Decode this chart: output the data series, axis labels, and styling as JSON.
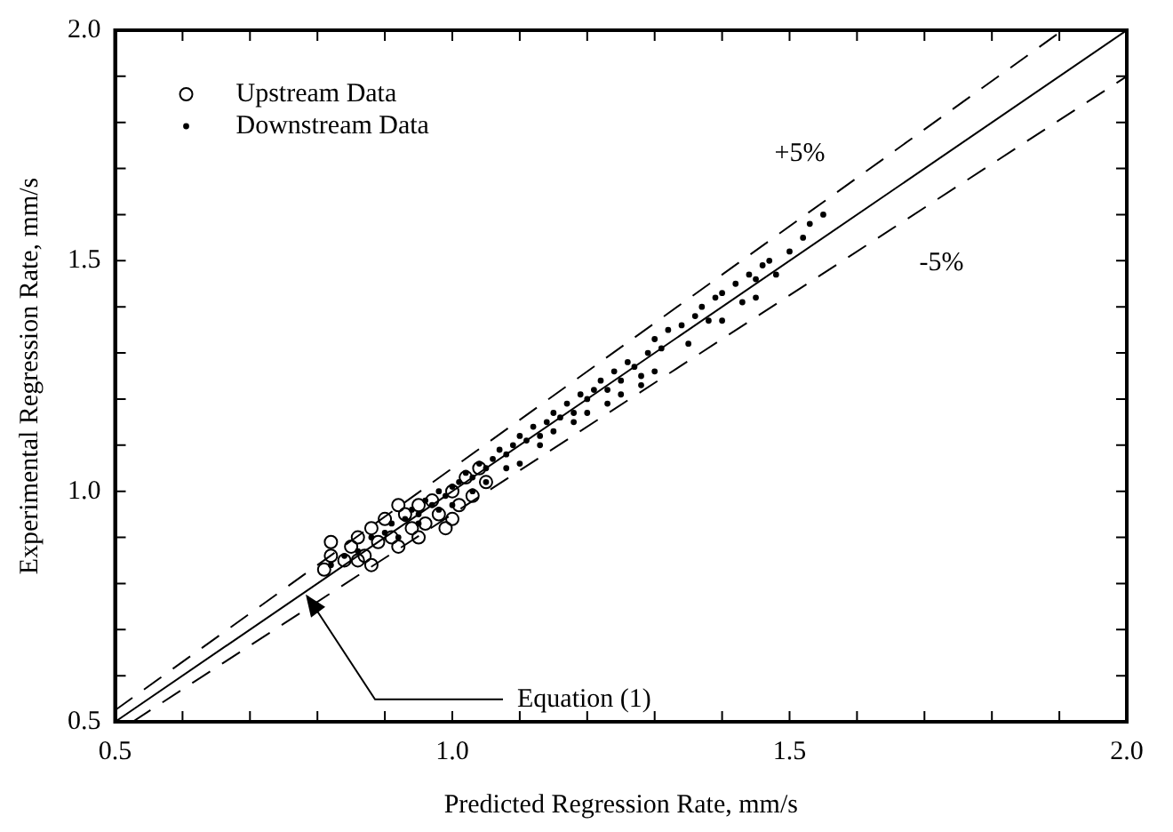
{
  "chart_data": {
    "type": "scatter",
    "xlabel": "Predicted Regression Rate, mm/s",
    "ylabel": "Experimental Regression Rate, mm/s",
    "xlim": [
      0.5,
      2.0
    ],
    "ylim": [
      0.5,
      2.0
    ],
    "xticks": [
      {
        "value": 0.5,
        "label": "0.5"
      },
      {
        "value": 0.6,
        "label": null
      },
      {
        "value": 0.7,
        "label": null
      },
      {
        "value": 0.8,
        "label": null
      },
      {
        "value": 0.9,
        "label": null
      },
      {
        "value": 1.0,
        "label": "1.0"
      },
      {
        "value": 1.1,
        "label": null
      },
      {
        "value": 1.2,
        "label": null
      },
      {
        "value": 1.3,
        "label": null
      },
      {
        "value": 1.4,
        "label": null
      },
      {
        "value": 1.5,
        "label": "1.5"
      },
      {
        "value": 1.6,
        "label": null
      },
      {
        "value": 1.7,
        "label": null
      },
      {
        "value": 1.8,
        "label": null
      },
      {
        "value": 1.9,
        "label": null
      },
      {
        "value": 2.0,
        "label": "2.0"
      }
    ],
    "yticks": [
      {
        "value": 0.5,
        "label": "0.5"
      },
      {
        "value": 0.6,
        "label": null
      },
      {
        "value": 0.7,
        "label": null
      },
      {
        "value": 0.8,
        "label": null
      },
      {
        "value": 0.9,
        "label": null
      },
      {
        "value": 1.0,
        "label": "1.0"
      },
      {
        "value": 1.1,
        "label": null
      },
      {
        "value": 1.2,
        "label": null
      },
      {
        "value": 1.3,
        "label": null
      },
      {
        "value": 1.4,
        "label": null
      },
      {
        "value": 1.5,
        "label": "1.5"
      },
      {
        "value": 1.6,
        "label": null
      },
      {
        "value": 1.7,
        "label": null
      },
      {
        "value": 1.8,
        "label": null
      },
      {
        "value": 1.9,
        "label": null
      },
      {
        "value": 2.0,
        "label": "2.0"
      }
    ],
    "grid": false,
    "legend": "top left",
    "series": [
      {
        "name": "Upstream Data",
        "marker": "circle",
        "color": "#000000",
        "x": [
          0.81,
          0.82,
          0.82,
          0.84,
          0.85,
          0.86,
          0.87,
          0.88,
          0.89,
          0.9,
          0.91,
          0.92,
          0.93,
          0.94,
          0.95,
          0.96,
          0.97,
          0.98,
          0.99,
          1.0,
          1.01,
          1.02,
          1.03,
          1.04,
          0.88,
          0.92,
          0.95,
          1.0,
          1.05,
          0.86
        ],
        "values": [
          0.83,
          0.86,
          0.89,
          0.85,
          0.88,
          0.9,
          0.86,
          0.92,
          0.89,
          0.94,
          0.9,
          0.88,
          0.95,
          0.92,
          0.97,
          0.93,
          0.98,
          0.95,
          0.92,
          1.0,
          0.97,
          1.03,
          0.99,
          1.05,
          0.84,
          0.97,
          0.9,
          0.94,
          1.02,
          0.85
        ]
      },
      {
        "name": "Downstream Data",
        "marker": "dot",
        "color": "#000000",
        "x": [
          0.82,
          0.84,
          0.86,
          0.88,
          0.9,
          0.91,
          0.93,
          0.94,
          0.95,
          0.96,
          0.97,
          0.98,
          0.99,
          1.0,
          1.01,
          1.02,
          1.03,
          1.04,
          1.05,
          1.06,
          1.07,
          1.08,
          1.09,
          1.1,
          1.11,
          1.12,
          1.13,
          1.14,
          1.15,
          1.16,
          1.17,
          1.18,
          1.19,
          1.2,
          1.21,
          1.22,
          1.23,
          1.24,
          1.25,
          1.26,
          1.27,
          1.28,
          1.29,
          1.3,
          1.31,
          1.32,
          1.34,
          1.36,
          1.37,
          1.38,
          1.39,
          1.4,
          1.42,
          1.43,
          1.44,
          1.45,
          1.46,
          1.47,
          1.48,
          1.5,
          1.52,
          1.53,
          1.55,
          0.95,
          1.0,
          1.05,
          1.1,
          1.15,
          1.2,
          1.25,
          1.3,
          1.35,
          1.4,
          1.45,
          0.92,
          0.98,
          1.03,
          1.08,
          1.13,
          1.18,
          1.23,
          1.28
        ],
        "values": [
          0.84,
          0.86,
          0.87,
          0.9,
          0.91,
          0.93,
          0.94,
          0.96,
          0.95,
          0.98,
          0.97,
          1.0,
          0.99,
          1.01,
          1.02,
          1.04,
          1.03,
          1.06,
          1.05,
          1.07,
          1.09,
          1.08,
          1.1,
          1.12,
          1.11,
          1.14,
          1.12,
          1.15,
          1.17,
          1.16,
          1.19,
          1.17,
          1.21,
          1.2,
          1.22,
          1.24,
          1.22,
          1.26,
          1.24,
          1.28,
          1.27,
          1.25,
          1.3,
          1.33,
          1.31,
          1.35,
          1.36,
          1.38,
          1.4,
          1.37,
          1.42,
          1.43,
          1.45,
          1.41,
          1.47,
          1.46,
          1.49,
          1.5,
          1.47,
          1.52,
          1.55,
          1.58,
          1.6,
          0.93,
          0.97,
          1.02,
          1.06,
          1.13,
          1.17,
          1.21,
          1.26,
          1.32,
          1.37,
          1.42,
          0.9,
          0.96,
          1.0,
          1.05,
          1.1,
          1.15,
          1.19,
          1.23
        ]
      },
      {
        "type": "line",
        "line_style": "solid",
        "color": "#000000",
        "x": [
          0.5,
          2.0
        ],
        "values": [
          0.5,
          2.0
        ]
      },
      {
        "type": "line",
        "line_style": "dashed",
        "color": "#000000",
        "x": [
          0.5,
          1.905
        ],
        "values": [
          0.525,
          2.0
        ]
      },
      {
        "type": "line",
        "line_style": "dashed",
        "color": "#000000",
        "x": [
          0.526,
          2.0
        ],
        "values": [
          0.5,
          1.9
        ]
      }
    ],
    "annotations": [
      "+5%",
      "-5%",
      {
        "text": "Equation (1)",
        "x": 0.78,
        "y": 0.78
      }
    ]
  }
}
